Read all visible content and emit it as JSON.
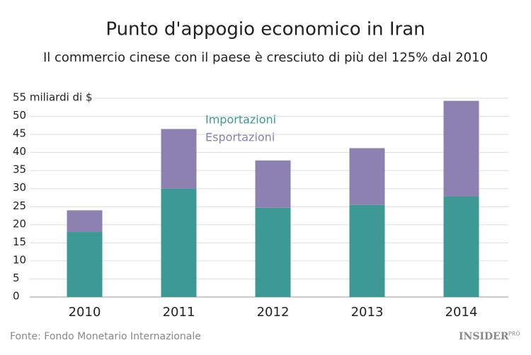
{
  "chart_data": {
    "type": "stacked_bar",
    "title": "Punto d'appogio economico in Iran",
    "subtitle": "Il commercio cinese con il paese è cresciuto di più del 125% dal 2010",
    "categories": [
      "2010",
      "2011",
      "2012",
      "2013",
      "2014"
    ],
    "series": [
      {
        "name": "Importazioni",
        "color": "#3c9994",
        "values": [
          18,
          30,
          24.7,
          25.5,
          27.8
        ]
      },
      {
        "name": "Esportazioni",
        "color": "#8c81b1",
        "values": [
          6,
          16.5,
          13.1,
          15.7,
          26.5
        ]
      }
    ],
    "ylim": [
      0,
      55
    ],
    "yticks": [
      0,
      5,
      10,
      15,
      20,
      25,
      30,
      35,
      40,
      45,
      50,
      {
        "value": 55,
        "label": "55 miliardi di $"
      }
    ],
    "grid": true,
    "source": "Fonte: Fondo Monetario Internazionale",
    "brand": "INSIDER",
    "brand_sub": "PRO"
  }
}
